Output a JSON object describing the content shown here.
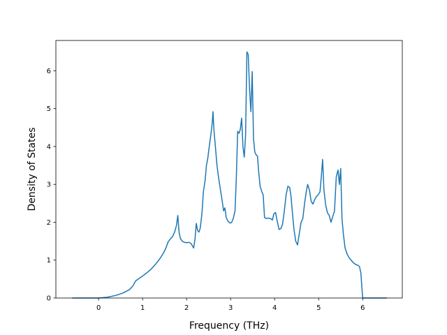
{
  "chart_data": {
    "type": "line",
    "xlabel": "Frequency (THz)",
    "ylabel": "Density of States",
    "xlim": [
      -0.97,
      6.9
    ],
    "ylim": [
      0,
      6.8
    ],
    "x_ticks": [
      0,
      1,
      2,
      3,
      4,
      5,
      6
    ],
    "y_ticks": [
      0,
      1,
      2,
      3,
      4,
      5,
      6
    ],
    "x_tick_labels": [
      "0",
      "1",
      "2",
      "3",
      "4",
      "5",
      "6"
    ],
    "y_tick_labels": [
      "0",
      "1",
      "2",
      "3",
      "4",
      "5",
      "6"
    ],
    "grid": false,
    "series": [
      {
        "color": "#1f77b4",
        "points": [
          [
            -0.6,
            0.0
          ],
          [
            0.0,
            0.0
          ],
          [
            0.2,
            0.02
          ],
          [
            0.4,
            0.07
          ],
          [
            0.55,
            0.13
          ],
          [
            0.7,
            0.22
          ],
          [
            0.78,
            0.32
          ],
          [
            0.84,
            0.45
          ],
          [
            0.9,
            0.5
          ],
          [
            1.0,
            0.58
          ],
          [
            1.1,
            0.67
          ],
          [
            1.2,
            0.77
          ],
          [
            1.3,
            0.9
          ],
          [
            1.4,
            1.05
          ],
          [
            1.48,
            1.2
          ],
          [
            1.53,
            1.32
          ],
          [
            1.58,
            1.48
          ],
          [
            1.63,
            1.56
          ],
          [
            1.68,
            1.62
          ],
          [
            1.73,
            1.75
          ],
          [
            1.77,
            1.92
          ],
          [
            1.8,
            2.18
          ],
          [
            1.83,
            1.72
          ],
          [
            1.86,
            1.57
          ],
          [
            1.9,
            1.5
          ],
          [
            1.95,
            1.47
          ],
          [
            2.0,
            1.46
          ],
          [
            2.05,
            1.47
          ],
          [
            2.1,
            1.44
          ],
          [
            2.13,
            1.38
          ],
          [
            2.16,
            1.32
          ],
          [
            2.19,
            1.55
          ],
          [
            2.22,
            1.97
          ],
          [
            2.25,
            1.78
          ],
          [
            2.28,
            1.74
          ],
          [
            2.31,
            1.85
          ],
          [
            2.35,
            2.25
          ],
          [
            2.38,
            2.8
          ],
          [
            2.42,
            3.1
          ],
          [
            2.45,
            3.5
          ],
          [
            2.48,
            3.68
          ],
          [
            2.52,
            4.05
          ],
          [
            2.55,
            4.3
          ],
          [
            2.58,
            4.6
          ],
          [
            2.6,
            4.92
          ],
          [
            2.62,
            4.45
          ],
          [
            2.65,
            4.05
          ],
          [
            2.69,
            3.5
          ],
          [
            2.73,
            3.15
          ],
          [
            2.77,
            2.85
          ],
          [
            2.81,
            2.55
          ],
          [
            2.84,
            2.3
          ],
          [
            2.87,
            2.38
          ],
          [
            2.9,
            2.12
          ],
          [
            2.94,
            2.03
          ],
          [
            2.98,
            1.98
          ],
          [
            3.02,
            1.99
          ],
          [
            3.06,
            2.1
          ],
          [
            3.1,
            2.3
          ],
          [
            3.13,
            3.2
          ],
          [
            3.16,
            4.4
          ],
          [
            3.19,
            4.35
          ],
          [
            3.22,
            4.45
          ],
          [
            3.25,
            4.75
          ],
          [
            3.28,
            4.0
          ],
          [
            3.31,
            3.72
          ],
          [
            3.34,
            4.3
          ],
          [
            3.37,
            6.5
          ],
          [
            3.4,
            6.43
          ],
          [
            3.43,
            5.5
          ],
          [
            3.46,
            4.92
          ],
          [
            3.49,
            5.98
          ],
          [
            3.52,
            4.2
          ],
          [
            3.55,
            3.85
          ],
          [
            3.58,
            3.78
          ],
          [
            3.61,
            3.75
          ],
          [
            3.64,
            3.3
          ],
          [
            3.67,
            2.95
          ],
          [
            3.71,
            2.8
          ],
          [
            3.74,
            2.72
          ],
          [
            3.77,
            2.13
          ],
          [
            3.8,
            2.1
          ],
          [
            3.85,
            2.11
          ],
          [
            3.9,
            2.1
          ],
          [
            3.95,
            2.06
          ],
          [
            3.98,
            2.22
          ],
          [
            4.02,
            2.26
          ],
          [
            4.06,
            2.02
          ],
          [
            4.1,
            1.81
          ],
          [
            4.14,
            1.83
          ],
          [
            4.18,
            1.95
          ],
          [
            4.22,
            2.3
          ],
          [
            4.26,
            2.72
          ],
          [
            4.3,
            2.95
          ],
          [
            4.34,
            2.92
          ],
          [
            4.37,
            2.7
          ],
          [
            4.4,
            2.3
          ],
          [
            4.44,
            1.8
          ],
          [
            4.48,
            1.5
          ],
          [
            4.52,
            1.4
          ],
          [
            4.56,
            1.7
          ],
          [
            4.6,
            2.0
          ],
          [
            4.64,
            2.1
          ],
          [
            4.68,
            2.5
          ],
          [
            4.72,
            2.82
          ],
          [
            4.75,
            3.0
          ],
          [
            4.79,
            2.85
          ],
          [
            4.83,
            2.55
          ],
          [
            4.87,
            2.48
          ],
          [
            4.91,
            2.6
          ],
          [
            4.95,
            2.68
          ],
          [
            4.99,
            2.73
          ],
          [
            5.03,
            2.8
          ],
          [
            5.06,
            3.2
          ],
          [
            5.09,
            3.66
          ],
          [
            5.12,
            2.85
          ],
          [
            5.16,
            2.45
          ],
          [
            5.2,
            2.25
          ],
          [
            5.24,
            2.18
          ],
          [
            5.28,
            2.0
          ],
          [
            5.32,
            2.15
          ],
          [
            5.36,
            2.3
          ],
          [
            5.4,
            3.2
          ],
          [
            5.44,
            3.38
          ],
          [
            5.47,
            3.0
          ],
          [
            5.5,
            3.42
          ],
          [
            5.53,
            2.1
          ],
          [
            5.56,
            1.7
          ],
          [
            5.6,
            1.32
          ],
          [
            5.65,
            1.15
          ],
          [
            5.7,
            1.05
          ],
          [
            5.75,
            0.98
          ],
          [
            5.8,
            0.92
          ],
          [
            5.85,
            0.88
          ],
          [
            5.9,
            0.86
          ],
          [
            5.93,
            0.82
          ],
          [
            5.96,
            0.65
          ],
          [
            5.98,
            0.3
          ],
          [
            6.0,
            0.0
          ],
          [
            6.55,
            0.0
          ]
        ]
      }
    ]
  }
}
